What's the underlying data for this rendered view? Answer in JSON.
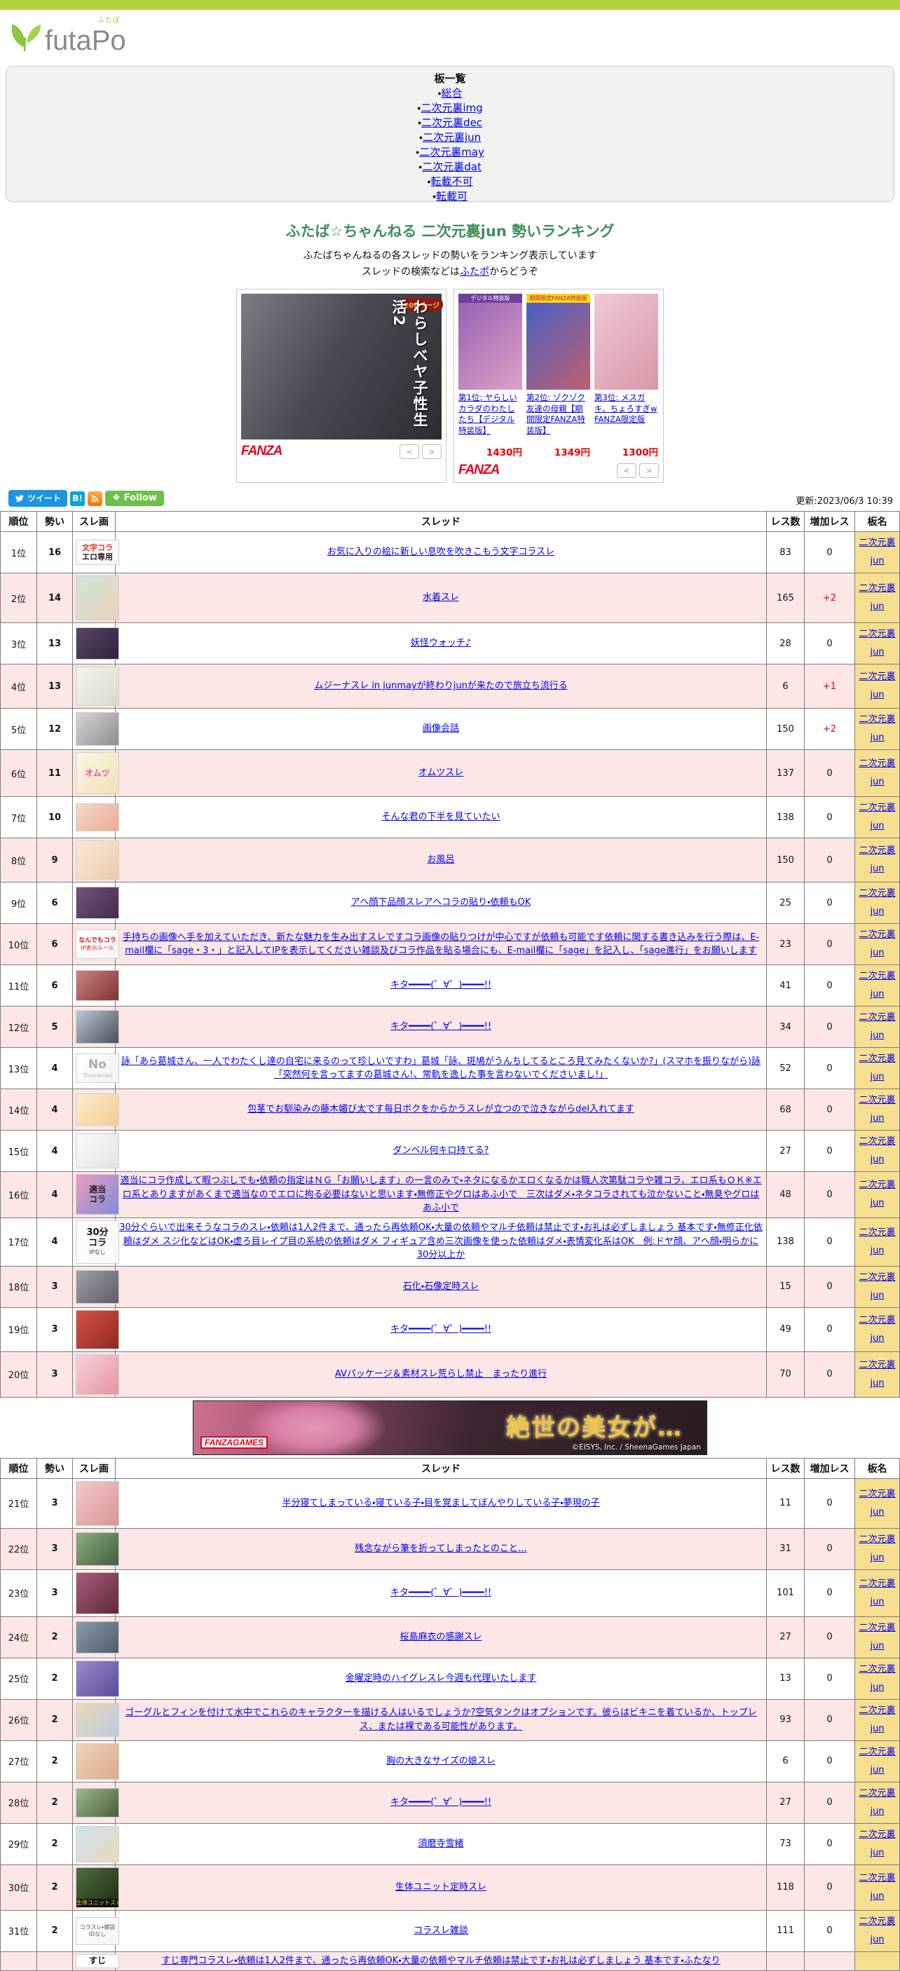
{
  "colors": {
    "topbar_green": "#AED438",
    "title_green": "#3F8E5A",
    "link_blue": "#0000E8",
    "row_pink": "#FCE6E6",
    "board_yellow": "#F7DF90",
    "inc_red": "#E80000",
    "fanza_red": "#E8001E"
  },
  "header": {
    "logo_text_left": "futa",
    "logo_text_right": "Po",
    "logo_ruby": "ふたぽ"
  },
  "board_list": {
    "title": "板一覧",
    "items": [
      {
        "label": "総合"
      },
      {
        "label": "二次元裏img"
      },
      {
        "label": "二次元裏dec"
      },
      {
        "label": "二次元裏jun"
      },
      {
        "label": "二次元裏may"
      },
      {
        "label": "二次元裏dat"
      },
      {
        "label": "転載不可"
      },
      {
        "label": "転載可"
      }
    ]
  },
  "main": {
    "title": "ふたば☆ちゃんねる 二次元裏jun 勢いランキング",
    "desc_line1": "ふたばちゃんねるの各スレッドの勢いをランキング表示しています",
    "desc_line2_pre": "スレッドの検索などは",
    "desc_link": "ふたポ",
    "desc_line2_post": "からどうぞ"
  },
  "ads": {
    "nav_prev": "<",
    "nav_next": ">",
    "left": {
      "badge": "200ページ",
      "caption": "わらしべヤ子性生活2",
      "brand": "FANZA"
    },
    "right": {
      "brand": "FANZA",
      "items": [
        {
          "title": "第1位: ヤらしいカラダのわたしたち【デジタル特装版】",
          "price": "1430円",
          "cap": "デジタル特装版",
          "cap_css": "background:#7040a0;color:#fff;",
          "bg": [
            "#9060b0",
            "#e0a0c8"
          ]
        },
        {
          "title": "第2位: ゾクゾク友達の母親【期間限定FANZA特装版】",
          "price": "1349円",
          "cap": "期間限定FANZA特装版",
          "cap_css": "background:#f8d820;color:#d02020;",
          "bg": [
            "#4060c8",
            "#c06070"
          ]
        },
        {
          "title": "第3位: メスガキ、ちょろすぎw FANZA限定版",
          "price": "1300円",
          "bg": [
            "#f0c8d8",
            "#d898a8"
          ]
        }
      ]
    }
  },
  "social": {
    "tweet": "ツイート",
    "hatena": "B!",
    "follow": "Follow"
  },
  "updated": "更新:2023/06/3 10:39",
  "table": {
    "headers": [
      "順位",
      "勢い",
      "スレ画",
      "スレッド",
      "レス数",
      "増加レス",
      "板名"
    ],
    "board_link": "二次元裏jun"
  },
  "mid_banner": {
    "text": "絶世の美女が…",
    "brand": "FANZAGAMES",
    "copyright": "©EISYS, Inc. / SheenaGames Japan"
  },
  "rows": [
    {
      "rank": "1位",
      "momentum": "16",
      "title": "お気に入りの絵に新しい息吹を吹きこもう文字コラスレ",
      "res": "83",
      "inc": "0",
      "thumb": {
        "h": 34,
        "bg": [
          "#ffffff",
          "#f6f6f6"
        ],
        "label": "文字コラ",
        "label_css": "color:#E03030;font-weight:bold;font-size:11px;",
        "sub": "エロ専用",
        "sub_css": "color:#222;font-weight:bold;font-size:11px;"
      }
    },
    {
      "rank": "2位",
      "momentum": "14",
      "title": "水着スレ",
      "res": "165",
      "inc": "+2",
      "thumb": {
        "h": 62,
        "bg": [
          "#cfe6da",
          "#ecd2bc"
        ]
      }
    },
    {
      "rank": "3位",
      "momentum": "13",
      "title": "妖怪ウォッチ♪",
      "res": "28",
      "inc": "0",
      "thumb": {
        "h": 44,
        "bg": [
          "#5a4668",
          "#2e2338"
        ]
      }
    },
    {
      "rank": "4位",
      "momentum": "13",
      "title": "ムジーナスレ in junmayが終わりjunが来たので旅立ち流行る",
      "res": "6",
      "inc": "+1",
      "thumb": {
        "h": 54,
        "bg": [
          "#f4f4ec",
          "#d9d9cb"
        ]
      }
    },
    {
      "rank": "5位",
      "momentum": "12",
      "title": "画像会話",
      "res": "150",
      "inc": "+2",
      "thumb": {
        "h": 46,
        "bg": [
          "#d6d6d6",
          "#8e8e8e"
        ]
      }
    },
    {
      "rank": "6位",
      "momentum": "11",
      "title": "オムツスレ",
      "res": "137",
      "inc": "0",
      "thumb": {
        "h": 58,
        "bg": [
          "#fbf5e4",
          "#f0e2b8"
        ],
        "label": "オムツ",
        "label_css": "color:#F0509A;font-weight:bold;font-size:12px;"
      }
    },
    {
      "rank": "7位",
      "momentum": "10",
      "title": "そんな君の下半を見ていたい",
      "res": "138",
      "inc": "0",
      "thumb": {
        "h": 38,
        "bg": [
          "#f6d8ca",
          "#e9ab92"
        ]
      }
    },
    {
      "rank": "8位",
      "momentum": "9",
      "title": "お風呂",
      "res": "150",
      "inc": "0",
      "thumb": {
        "h": 54,
        "bg": [
          "#f9ead9",
          "#ecccab"
        ]
      }
    },
    {
      "rank": "9位",
      "momentum": "6",
      "title": "アヘ顔下品顔スレアヘコラの貼り・依頼もOK",
      "res": "25",
      "inc": "0",
      "thumb": {
        "h": 44,
        "bg": [
          "#75527a",
          "#402c4e"
        ]
      }
    },
    {
      "rank": "10位",
      "momentum": "6",
      "title": "手持ちの画像へ手を加えていただき、新たな魅力を生み出すスレですコラ画像の貼りつけが中心ですが依頼も可能です依頼に関する書き込みを行う際は、E-mail欄に「sage・3・」と記入してIPを表示してください雑談及びコラ作品を貼る場合にも、E-mail欄に「sage」を記入し、「sage進行」をお願いします",
      "res": "23",
      "inc": "0",
      "thumb": {
        "h": 40,
        "bg": [
          "#ffffff",
          "#f4f4f4"
        ],
        "label": "なんでもコラ",
        "label_css": "color:#D02020;font-weight:bold;font-size:9px;",
        "sub": "IP表示ルール",
        "sub_css": "color:#D02020;font-size:8px;"
      }
    },
    {
      "rank": "11位",
      "momentum": "6",
      "title": "キタ━━━━(゜∀゜)━━━━!!",
      "res": "41",
      "inc": "0",
      "thumb": {
        "h": 42,
        "bg": [
          "#cd8282",
          "#7c3434"
        ]
      }
    },
    {
      "rank": "12位",
      "momentum": "5",
      "title": "キタ━━━━(゜∀゜)━━━━!!",
      "res": "34",
      "inc": "0",
      "thumb": {
        "h": 46,
        "bg": [
          "#bcc9d8",
          "#4d4d59"
        ]
      }
    },
    {
      "rank": "13位",
      "momentum": "4",
      "title": "詠「あら葛城さん、一人でわたくし達の自宅に来るのって珍しいですわ」葛城「詠、斑鳩がうんちしてるところ見てみたくないか?」(スマホを振りながら)詠「突然何を言ってますの葛城さん!、常軌を逸した事を言わないでくださいまし!」",
      "res": "52",
      "inc": "0",
      "thumb": {
        "h": 40,
        "bg": [
          "#ffffff",
          "#f1f1f1"
        ],
        "label": "No",
        "label_css": "color:#ABABAB;font-weight:bold;font-size:17px;",
        "sub": "Thumbnail",
        "sub_css": "color:#B5B5B5;font-size:8px;"
      }
    },
    {
      "rank": "14位",
      "momentum": "4",
      "title": "包茎でお馴染みの藤木媚び太です毎日ボクをからかうスレが立つので泣きながらdel入れてます",
      "res": "68",
      "inc": "0",
      "thumb": {
        "h": 44,
        "bg": [
          "#fcecca",
          "#f2cd96"
        ]
      }
    },
    {
      "rank": "15位",
      "momentum": "4",
      "title": "ダンベル何キロ持てる?",
      "res": "27",
      "inc": "0",
      "thumb": {
        "h": 48,
        "bg": [
          "#fafafa",
          "#e3e3e3"
        ]
      }
    },
    {
      "rank": "16位",
      "momentum": "4",
      "title": "適当にコラ作成して暇つぶしでも・依頼の指定はＮＧ「お願いします」の一言のみで・ネタになるかエロくなるかは職人次第駄コラや雑コラ、エロ系もＯＫ※エロ系とありますがあくまで適当なのでエロに拘る必要はないと思います・無修正やグロはあふ小で　三次はダメ・ネタコラされても泣かないこと・無臭やグロはあふ小で",
      "res": "48",
      "inc": "0",
      "thumb": {
        "h": 56,
        "bg": [
          "#ec9cc0",
          "#7e8cda"
        ],
        "label": "適当コラ",
        "label_css": "color:#222;font-weight:bold;font-size:12px;width:30px;"
      }
    },
    {
      "rank": "17位",
      "momentum": "4",
      "title": "30分ぐらいで出来そうなコラのスレ・依頼は1人2件まで、通ったら再依頼OK・大量の依頼やマルチ依頼は禁止です・お礼は必ずしましょう 基本です・無修正化依頼はダメ スジ化などはOK・虚ろ目レイプ目の系統の依頼はダメ フィギュア含め三次画像を使った依頼はダメ・表情変化系はOK　例:ドヤ顔、アヘ顔・明らかに30分以上か",
      "res": "138",
      "inc": "0",
      "thumb": {
        "h": 60,
        "bg": [
          "#ffffff",
          "#f8f8f8"
        ],
        "label": "30分コラ",
        "label_css": "color:#111;font-weight:bold;font-size:13px;width:34px;line-height:1.15;",
        "sub": "IPなし",
        "sub_css": "color:#333;font-size:8px;"
      }
    },
    {
      "rank": "18位",
      "momentum": "3",
      "title": "石化・石像定時スレ",
      "res": "15",
      "inc": "0",
      "thumb": {
        "h": 46,
        "bg": [
          "#a0a0a8",
          "#5c5c64"
        ]
      }
    },
    {
      "rank": "19位",
      "momentum": "3",
      "title": "キタ━━━━(゜∀゜)━━━━!!",
      "res": "49",
      "inc": "0",
      "thumb": {
        "h": 54,
        "bg": [
          "#d85046",
          "#8e2a22"
        ]
      }
    },
    {
      "rank": "20位",
      "momentum": "3",
      "title": "AVパッケージ＆素材スレ荒らし禁止　まったり進行",
      "res": "70",
      "inc": "0",
      "thumb": {
        "h": 56,
        "bg": [
          "#f6d2da",
          "#e694a0"
        ]
      }
    },
    {
      "rank": "21位",
      "momentum": "3",
      "title": "半分寝てしまっている・寝ている子・目を覚ましてぼんやりしている子・夢現の子",
      "res": "11",
      "inc": "0",
      "thumb": {
        "h": 62,
        "bg": [
          "#f2caca",
          "#da9494"
        ]
      }
    },
    {
      "rank": "22位",
      "momentum": "3",
      "title": "残念ながら筆を折ってしまったとのこと…",
      "res": "31",
      "inc": "0",
      "thumb": {
        "h": 46,
        "bg": [
          "#8fae80",
          "#3f5f3f"
        ]
      }
    },
    {
      "rank": "23位",
      "momentum": "3",
      "title": "キタ━━━━(゜∀゜)━━━━!!",
      "res": "101",
      "inc": "0",
      "thumb": {
        "h": 58,
        "bg": [
          "#ab5b7b",
          "#5c2b3d"
        ]
      }
    },
    {
      "rank": "24位",
      "momentum": "2",
      "title": "桜島麻衣の感謝スレ",
      "res": "27",
      "inc": "0",
      "thumb": {
        "h": 44,
        "bg": [
          "#8c9cab",
          "#4c5c6b"
        ]
      }
    },
    {
      "rank": "25位",
      "momentum": "2",
      "title": "金曜定時のハイグレスレ今週も代理いたします",
      "res": "13",
      "inc": "0",
      "thumb": {
        "h": 50,
        "bg": [
          "#9c8cc9",
          "#5c4a9c"
        ]
      }
    },
    {
      "rank": "26位",
      "momentum": "2",
      "title": "ゴーグルとフィンを付けて水中でこれらのキャラクターを描ける人はいるでしょうか?空気タンクはオプションです。彼らはビキニを着ているか、トップレス、または裸である可能性があります。",
      "res": "93",
      "inc": "0",
      "thumb": {
        "h": 46,
        "bg": [
          "#e9dabb",
          "#bccbdb"
        ]
      }
    },
    {
      "rank": "27位",
      "momentum": "2",
      "title": "胸の大きなサイズの娘スレ",
      "res": "6",
      "inc": "0",
      "thumb": {
        "h": 50,
        "bg": [
          "#f2d3ba",
          "#daab8b"
        ]
      }
    },
    {
      "rank": "28位",
      "momentum": "2",
      "title": "キタ━━━━(゜∀゜)━━━━!!",
      "res": "27",
      "inc": "0",
      "thumb": {
        "h": 40,
        "bg": [
          "#9cba8c",
          "#4c5c3c"
        ]
      }
    },
    {
      "rank": "29位",
      "momentum": "2",
      "title": "須磨寺雪緒",
      "res": "73",
      "inc": "0",
      "thumb": {
        "h": 50,
        "bg": [
          "#cce3f2",
          "#ead9ba"
        ]
      }
    },
    {
      "rank": "30位",
      "momentum": "2",
      "title": "生体ユニット定時スレ",
      "res": "118",
      "inc": "0",
      "thumb": {
        "h": 56,
        "bg": [
          "#4e6e3e",
          "#1c2c14"
        ],
        "caption": "生体ユニットスレ"
      }
    },
    {
      "rank": "31位",
      "momentum": "2",
      "title": "コラスレ雑談",
      "res": "111",
      "inc": "0",
      "thumb": {
        "h": 38,
        "bg": [
          "#ffffff",
          "#f4f4f4"
        ],
        "label": "コラスレ・雑談",
        "label_css": "color:#555;font-size:8px;",
        "sub": "IDなし",
        "sub_css": "color:#555;font-size:8px;"
      }
    },
    {
      "rank": "",
      "momentum": "",
      "title": "すじ専門コラスレ・依頼は1人2件まで、通ったら再依頼OK・大量の依頼やマルチ依頼は禁止です・お礼は必ずしましょう 基本です・ふたなり",
      "res": "",
      "inc": "",
      "partial": true,
      "board_hidden": true,
      "thumb": {
        "h": 18,
        "bg": [
          "#ffffff",
          "#ffffff"
        ],
        "label": "すじ",
        "label_css": "color:#111;font-weight:bold;font-size:12px;"
      }
    }
  ]
}
